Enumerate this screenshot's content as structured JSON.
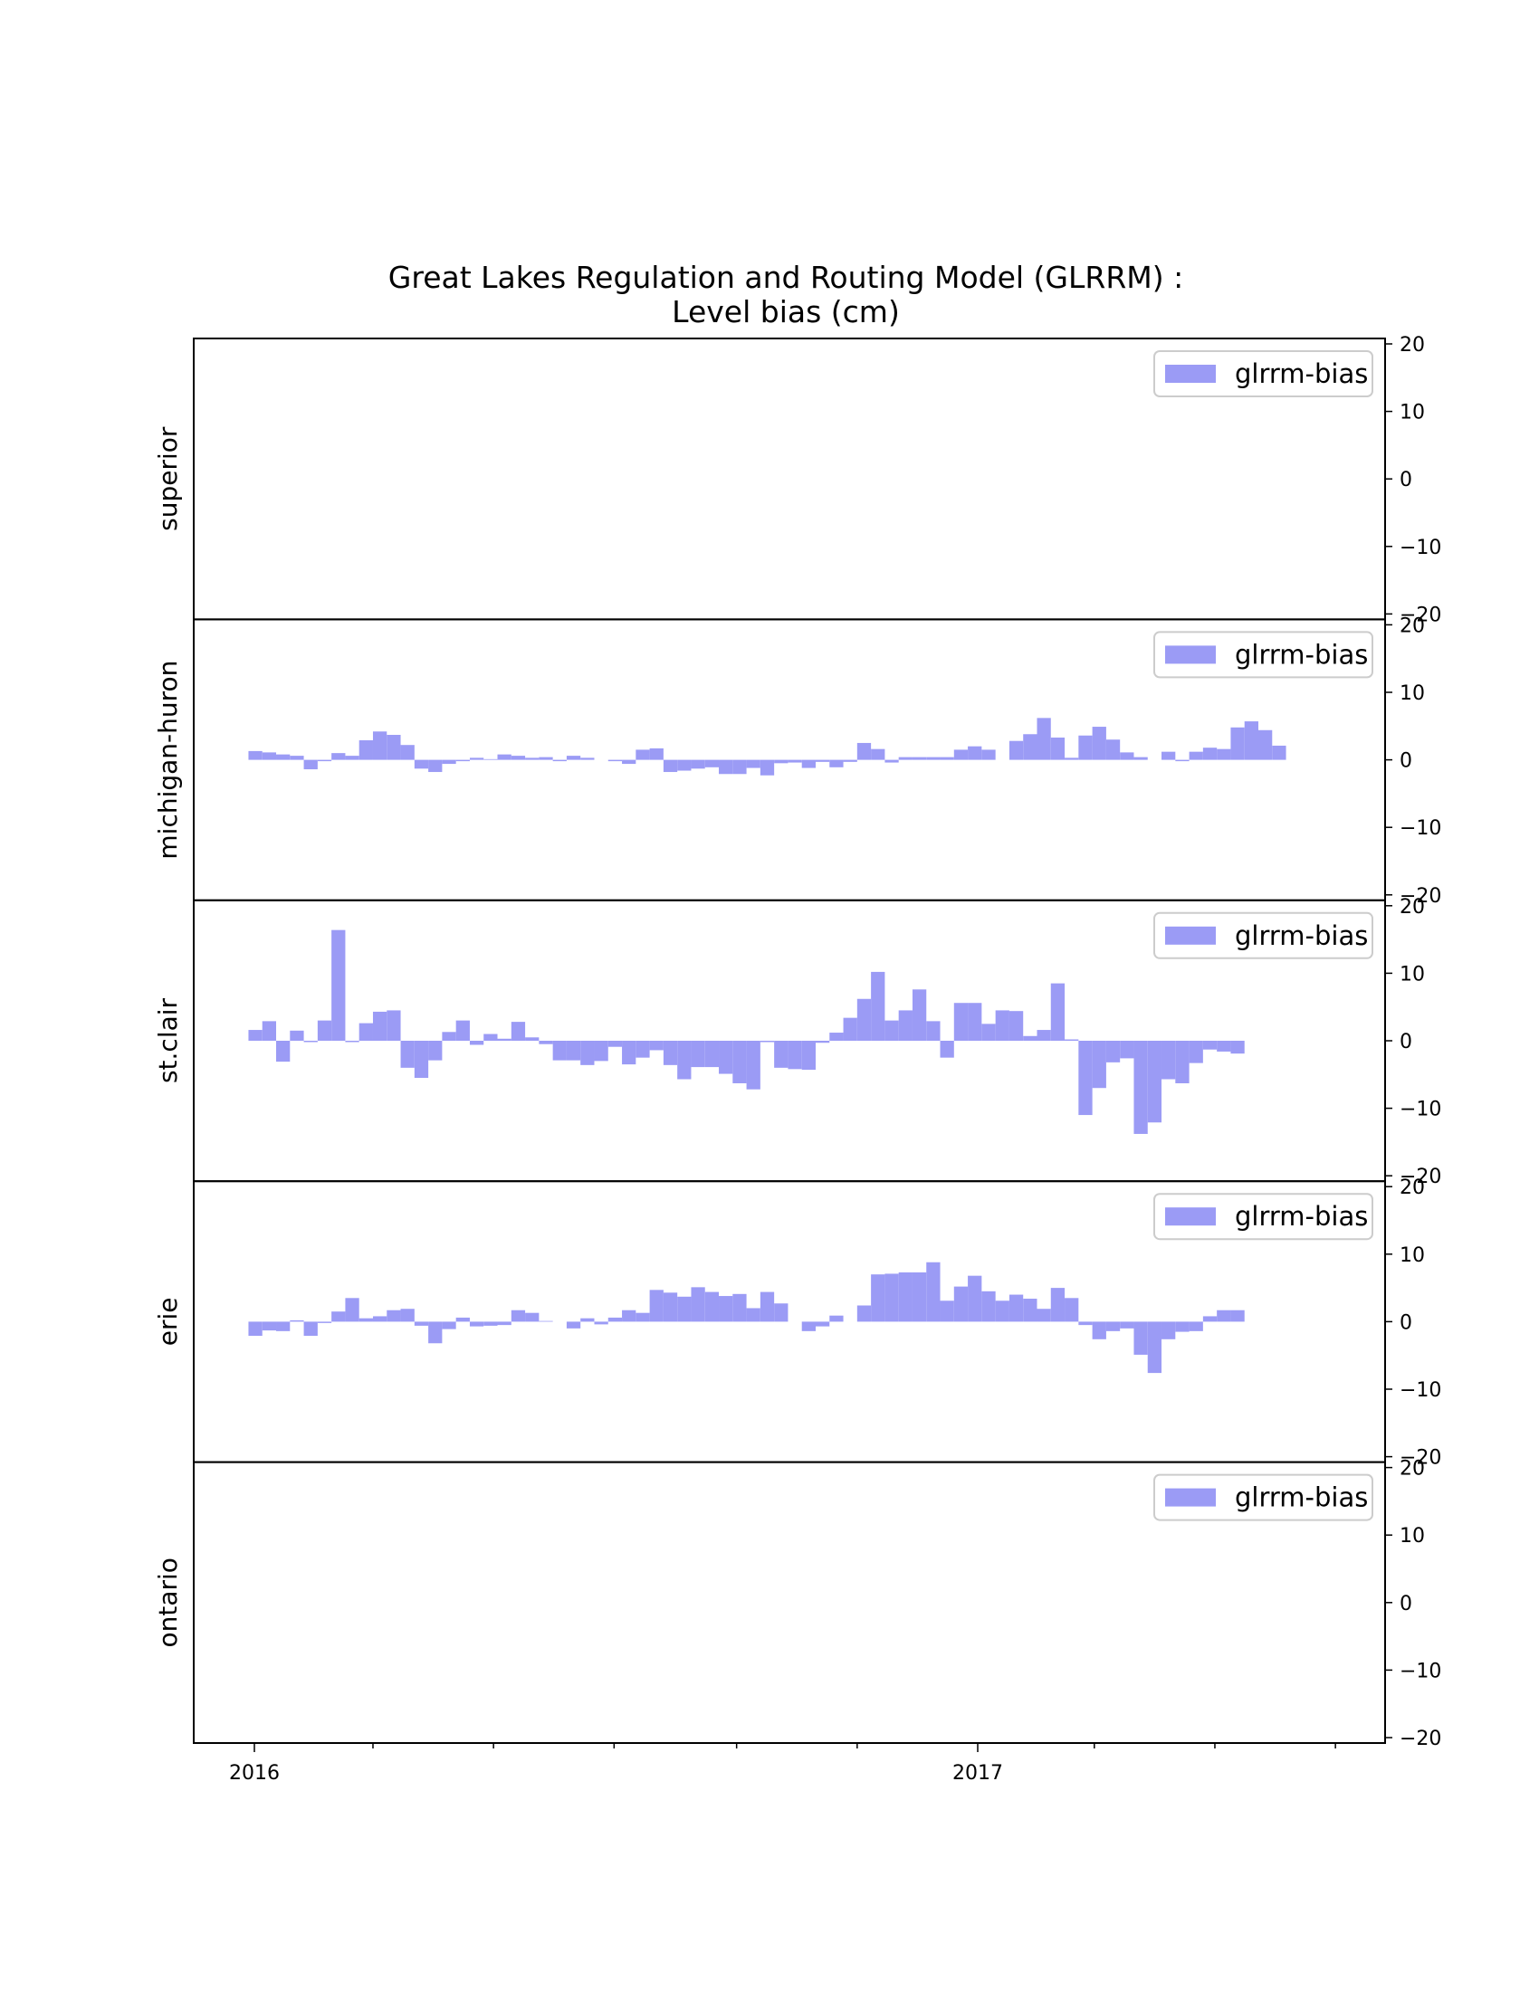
{
  "chart_data": {
    "type": "bar",
    "title": "Great Lakes Regulation and Routing Model (GLRRM) :",
    "subtitle": "Level bias (cm)",
    "x_tick_labels": [
      "2016",
      "2017"
    ],
    "x_ticks": [
      "2016-01-01",
      "2017-01-01"
    ],
    "ylim": [
      -20,
      20
    ],
    "y_ticks": [
      20,
      10,
      0,
      -10,
      -20
    ],
    "y_tick_labels": [
      "20",
      "10",
      "0",
      "−10",
      "−20"
    ],
    "legend_placement": "top-right",
    "bar_color": "#9b9bf5",
    "panels": [
      {
        "name": "superior",
        "series": [
          {
            "name": "glrrm-bias",
            "values": []
          }
        ]
      },
      {
        "name": "michigan-huron",
        "series": [
          {
            "name": "glrrm-bias",
            "values": [
              1.3,
              1.1,
              0.8,
              0.6,
              -1.4,
              -0.2,
              1.0,
              0.6,
              2.9,
              4.2,
              3.7,
              2.2,
              -1.3,
              -1.8,
              -0.6,
              -0.2,
              0.3,
              0.1,
              0.8,
              0.6,
              0.3,
              0.4,
              -0.2,
              0.6,
              0.3,
              0.0,
              -0.2,
              -0.6,
              1.5,
              1.7,
              -1.8,
              -1.6,
              -1.3,
              -1.1,
              -2.1,
              -2.1,
              -1.2,
              -2.3,
              -0.5,
              -0.4,
              -1.2,
              -0.3,
              -1.1,
              -0.3,
              2.5,
              1.6,
              -0.4,
              0.4,
              0.4,
              0.4,
              0.4,
              1.5,
              2.0,
              1.5,
              0.0,
              2.8,
              3.8,
              6.2,
              3.3,
              0.3,
              3.6,
              4.9,
              3.0,
              1.1,
              0.4,
              0.0,
              1.2,
              -0.2,
              1.2,
              1.8,
              1.6,
              4.8,
              5.7,
              4.4,
              2.1
            ]
          }
        ]
      },
      {
        "name": "st.clair",
        "series": [
          {
            "name": "glrrm-bias",
            "values": [
              1.6,
              2.9,
              -3.1,
              1.5,
              -0.2,
              3.0,
              16.4,
              -0.2,
              2.6,
              4.3,
              4.5,
              -4.0,
              -5.5,
              -2.9,
              1.3,
              3.0,
              -0.6,
              1.0,
              0.3,
              2.8,
              0.5,
              -0.5,
              -2.9,
              -2.9,
              -3.6,
              -3.0,
              -0.9,
              -3.5,
              -2.5,
              -1.4,
              -3.6,
              -5.7,
              -3.9,
              -3.9,
              -4.9,
              -6.3,
              -7.2,
              -0.2,
              -4.0,
              -4.2,
              -4.3,
              -0.3,
              1.2,
              3.4,
              6.2,
              10.2,
              3.0,
              4.5,
              7.6,
              2.9,
              -2.5,
              5.6,
              5.6,
              2.5,
              4.5,
              4.4,
              0.7,
              1.6,
              8.5,
              0.2,
              -11.0,
              -7.0,
              -3.2,
              -2.6,
              -13.8,
              -12.1,
              -5.7,
              -6.3,
              -3.3,
              -1.3,
              -1.6,
              -1.9
            ]
          }
        ]
      },
      {
        "name": "erie",
        "series": [
          {
            "name": "glrrm-bias",
            "values": [
              -2.1,
              -1.3,
              -1.4,
              0.2,
              -2.1,
              -0.2,
              1.5,
              3.5,
              0.5,
              0.8,
              1.7,
              1.9,
              -0.6,
              -3.2,
              -1.1,
              0.6,
              -0.7,
              -0.6,
              -0.5,
              1.7,
              1.3,
              0.1,
              0.0,
              -1.0,
              0.5,
              -0.4,
              0.6,
              1.7,
              1.3,
              4.7,
              4.3,
              3.7,
              5.1,
              4.4,
              3.8,
              4.1,
              2.0,
              4.4,
              2.7,
              0.0,
              -1.4,
              -0.7,
              0.9,
              0.0,
              2.4,
              7.0,
              7.1,
              7.3,
              7.3,
              8.8,
              3.1,
              5.2,
              6.8,
              4.5,
              3.1,
              4.0,
              3.4,
              1.9,
              5.0,
              3.5,
              -0.5,
              -2.6,
              -1.4,
              -1.0,
              -4.9,
              -7.6,
              -2.6,
              -1.5,
              -1.4,
              0.8,
              1.7,
              1.7
            ]
          }
        ]
      },
      {
        "name": "ontario",
        "series": [
          {
            "name": "glrrm-bias",
            "values": []
          }
        ]
      }
    ]
  }
}
